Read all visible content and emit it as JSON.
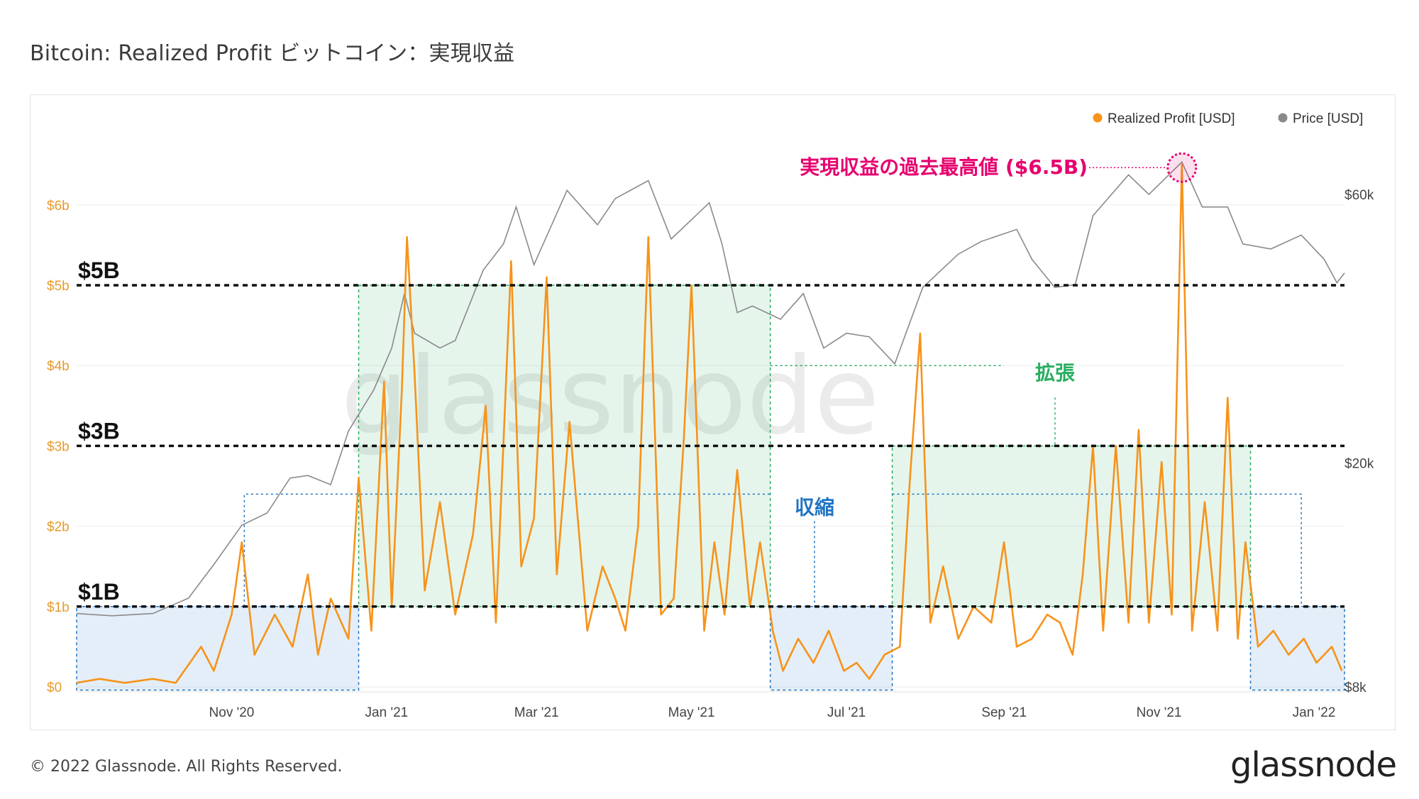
{
  "title": "Bitcoin: Realized Profit  ビットコイン：実現収益",
  "footer": {
    "copyright": "© 2022 Glassnode. All Rights Reserved.",
    "logo": "glassnode"
  },
  "watermark": "glassnode",
  "colors": {
    "profit": "#f7931a",
    "price": "#8a8a8a",
    "expansion": "#27ae60",
    "contraction": "#1f74c4",
    "ath": "#e6006e"
  },
  "chart_data": {
    "type": "line",
    "x_ticks": [
      "Nov '20",
      "Jan '21",
      "Mar '21",
      "May '21",
      "Jul '21",
      "Sep '21",
      "Nov '21",
      "Jan '22"
    ],
    "y_left_ticks": [
      "$0",
      "$1b",
      "$2b",
      "$3b",
      "$4b",
      "$5b",
      "$6b"
    ],
    "y_right_ticks": [
      "$8k",
      "$20k",
      "$60k"
    ],
    "y_left_range": [
      0,
      6.5
    ],
    "y_right_scale": "log",
    "legend": [
      {
        "name": "Realized Profit [USD]",
        "color": "#f7931a"
      },
      {
        "name": "Price [USD]",
        "color": "#8a8a8a"
      }
    ],
    "legend_position": "top-right",
    "grid": true,
    "levels": [
      {
        "label": "$5B",
        "value": 5
      },
      {
        "label": "$3B",
        "value": 3
      },
      {
        "label": "$1B",
        "value": 1
      }
    ],
    "annotations": {
      "ath": "実現収益の過去最高値 ($6.5B)",
      "expansion": "拡張",
      "contraction": "収縮"
    },
    "series": [
      {
        "name": "Realized Profit [USD]",
        "unit": "billion USD",
        "points": [
          [
            "2020-09-01",
            0.05
          ],
          [
            "2020-09-10",
            0.1
          ],
          [
            "2020-09-20",
            0.05
          ],
          [
            "2020-10-01",
            0.1
          ],
          [
            "2020-10-10",
            0.05
          ],
          [
            "2020-10-20",
            0.5
          ],
          [
            "2020-10-25",
            0.2
          ],
          [
            "2020-11-01",
            0.9
          ],
          [
            "2020-11-05",
            1.8
          ],
          [
            "2020-11-10",
            0.4
          ],
          [
            "2020-11-18",
            0.9
          ],
          [
            "2020-11-25",
            0.5
          ],
          [
            "2020-12-01",
            1.4
          ],
          [
            "2020-12-05",
            0.4
          ],
          [
            "2020-12-10",
            1.1
          ],
          [
            "2020-12-17",
            0.6
          ],
          [
            "2020-12-21",
            2.6
          ],
          [
            "2020-12-26",
            0.7
          ],
          [
            "2020-12-31",
            3.8
          ],
          [
            "2021-01-03",
            1.0
          ],
          [
            "2021-01-07",
            3.7
          ],
          [
            "2021-01-09",
            5.6
          ],
          [
            "2021-01-12",
            3.9
          ],
          [
            "2021-01-16",
            1.2
          ],
          [
            "2021-01-22",
            2.3
          ],
          [
            "2021-01-28",
            0.9
          ],
          [
            "2021-02-04",
            1.9
          ],
          [
            "2021-02-09",
            3.5
          ],
          [
            "2021-02-13",
            0.8
          ],
          [
            "2021-02-19",
            5.3
          ],
          [
            "2021-02-23",
            1.5
          ],
          [
            "2021-02-28",
            2.1
          ],
          [
            "2021-03-05",
            5.1
          ],
          [
            "2021-03-09",
            1.4
          ],
          [
            "2021-03-14",
            3.3
          ],
          [
            "2021-03-21",
            0.7
          ],
          [
            "2021-03-27",
            1.5
          ],
          [
            "2021-04-01",
            1.1
          ],
          [
            "2021-04-05",
            0.7
          ],
          [
            "2021-04-10",
            2.0
          ],
          [
            "2021-04-14",
            5.6
          ],
          [
            "2021-04-19",
            0.9
          ],
          [
            "2021-04-24",
            1.1
          ],
          [
            "2021-04-28",
            3.1
          ],
          [
            "2021-05-01",
            5.0
          ],
          [
            "2021-05-06",
            0.7
          ],
          [
            "2021-05-10",
            1.8
          ],
          [
            "2021-05-14",
            0.9
          ],
          [
            "2021-05-19",
            2.7
          ],
          [
            "2021-05-24",
            1.0
          ],
          [
            "2021-05-28",
            1.8
          ],
          [
            "2021-06-02",
            0.7
          ],
          [
            "2021-06-06",
            0.2
          ],
          [
            "2021-06-12",
            0.6
          ],
          [
            "2021-06-18",
            0.3
          ],
          [
            "2021-06-24",
            0.7
          ],
          [
            "2021-06-30",
            0.2
          ],
          [
            "2021-07-05",
            0.3
          ],
          [
            "2021-07-10",
            0.1
          ],
          [
            "2021-07-16",
            0.4
          ],
          [
            "2021-07-22",
            0.5
          ],
          [
            "2021-07-26",
            2.6
          ],
          [
            "2021-07-30",
            4.4
          ],
          [
            "2021-08-03",
            0.8
          ],
          [
            "2021-08-08",
            1.5
          ],
          [
            "2021-08-14",
            0.6
          ],
          [
            "2021-08-20",
            1.0
          ],
          [
            "2021-08-27",
            0.8
          ],
          [
            "2021-09-01",
            1.8
          ],
          [
            "2021-09-06",
            0.5
          ],
          [
            "2021-09-12",
            0.6
          ],
          [
            "2021-09-18",
            0.9
          ],
          [
            "2021-09-23",
            0.8
          ],
          [
            "2021-09-28",
            0.4
          ],
          [
            "2021-10-02",
            1.4
          ],
          [
            "2021-10-06",
            3.0
          ],
          [
            "2021-10-10",
            0.7
          ],
          [
            "2021-10-15",
            3.0
          ],
          [
            "2021-10-20",
            0.8
          ],
          [
            "2021-10-24",
            3.2
          ],
          [
            "2021-10-28",
            0.8
          ],
          [
            "2021-11-02",
            2.8
          ],
          [
            "2021-11-06",
            0.9
          ],
          [
            "2021-11-10",
            6.5
          ],
          [
            "2021-11-14",
            0.7
          ],
          [
            "2021-11-19",
            2.3
          ],
          [
            "2021-11-24",
            0.7
          ],
          [
            "2021-11-28",
            3.6
          ],
          [
            "2021-12-02",
            0.6
          ],
          [
            "2021-12-05",
            1.8
          ],
          [
            "2021-12-10",
            0.5
          ],
          [
            "2021-12-16",
            0.7
          ],
          [
            "2021-12-22",
            0.4
          ],
          [
            "2021-12-28",
            0.6
          ],
          [
            "2022-01-02",
            0.3
          ],
          [
            "2022-01-08",
            0.5
          ],
          [
            "2022-01-12",
            0.2
          ]
        ]
      },
      {
        "name": "Price [USD]",
        "unit": "USD",
        "points": [
          [
            "2020-09-01",
            10800
          ],
          [
            "2020-09-15",
            10700
          ],
          [
            "2020-10-01",
            10800
          ],
          [
            "2020-10-15",
            11500
          ],
          [
            "2020-10-25",
            13200
          ],
          [
            "2020-11-05",
            15500
          ],
          [
            "2020-11-15",
            16300
          ],
          [
            "2020-11-24",
            18800
          ],
          [
            "2020-12-01",
            19000
          ],
          [
            "2020-12-10",
            18300
          ],
          [
            "2020-12-17",
            22800
          ],
          [
            "2020-12-27",
            27000
          ],
          [
            "2021-01-03",
            32000
          ],
          [
            "2021-01-08",
            40000
          ],
          [
            "2021-01-12",
            34000
          ],
          [
            "2021-01-22",
            32000
          ],
          [
            "2021-01-28",
            33000
          ],
          [
            "2021-02-08",
            44000
          ],
          [
            "2021-02-16",
            49000
          ],
          [
            "2021-02-21",
            57000
          ],
          [
            "2021-02-28",
            45000
          ],
          [
            "2021-03-13",
            61000
          ],
          [
            "2021-03-25",
            53000
          ],
          [
            "2021-04-01",
            59000
          ],
          [
            "2021-04-14",
            63500
          ],
          [
            "2021-04-23",
            50000
          ],
          [
            "2021-05-08",
            58000
          ],
          [
            "2021-05-13",
            49000
          ],
          [
            "2021-05-19",
            37000
          ],
          [
            "2021-05-25",
            38000
          ],
          [
            "2021-06-05",
            36000
          ],
          [
            "2021-06-14",
            40000
          ],
          [
            "2021-06-22",
            32000
          ],
          [
            "2021-07-01",
            34000
          ],
          [
            "2021-07-10",
            33500
          ],
          [
            "2021-07-20",
            30000
          ],
          [
            "2021-07-31",
            41000
          ],
          [
            "2021-08-14",
            47000
          ],
          [
            "2021-08-23",
            49500
          ],
          [
            "2021-09-06",
            52000
          ],
          [
            "2021-09-12",
            46000
          ],
          [
            "2021-09-21",
            41000
          ],
          [
            "2021-09-29",
            41500
          ],
          [
            "2021-10-06",
            55000
          ],
          [
            "2021-10-20",
            65000
          ],
          [
            "2021-10-28",
            60000
          ],
          [
            "2021-11-10",
            68500
          ],
          [
            "2021-11-18",
            57000
          ],
          [
            "2021-11-28",
            57000
          ],
          [
            "2021-12-04",
            49000
          ],
          [
            "2021-12-15",
            48000
          ],
          [
            "2021-12-27",
            50800
          ],
          [
            "2022-01-05",
            46000
          ],
          [
            "2022-01-10",
            41800
          ],
          [
            "2022-01-13",
            43500
          ]
        ]
      }
    ]
  }
}
